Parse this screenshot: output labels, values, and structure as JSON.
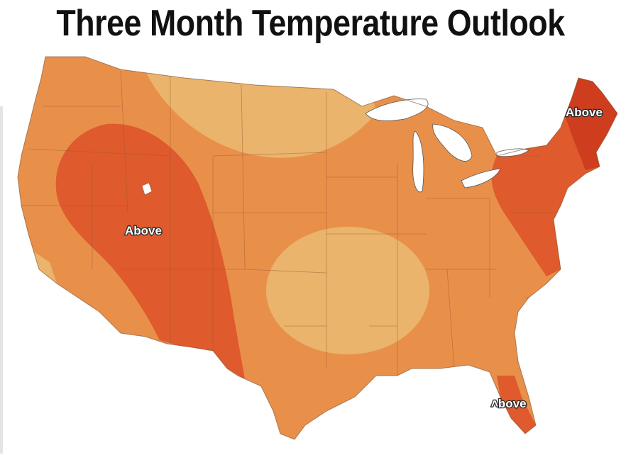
{
  "title": "Three Month Temperature Outlook",
  "labels": {
    "west": "Above",
    "northeast": "Above",
    "florida": "˄bove"
  },
  "colors": {
    "base": "#e8904a",
    "light": "#eab46c",
    "dark": "#df5a2c",
    "darker": "#cf3d1f",
    "water": "#ffffff",
    "lakes": "#ffffff"
  }
}
